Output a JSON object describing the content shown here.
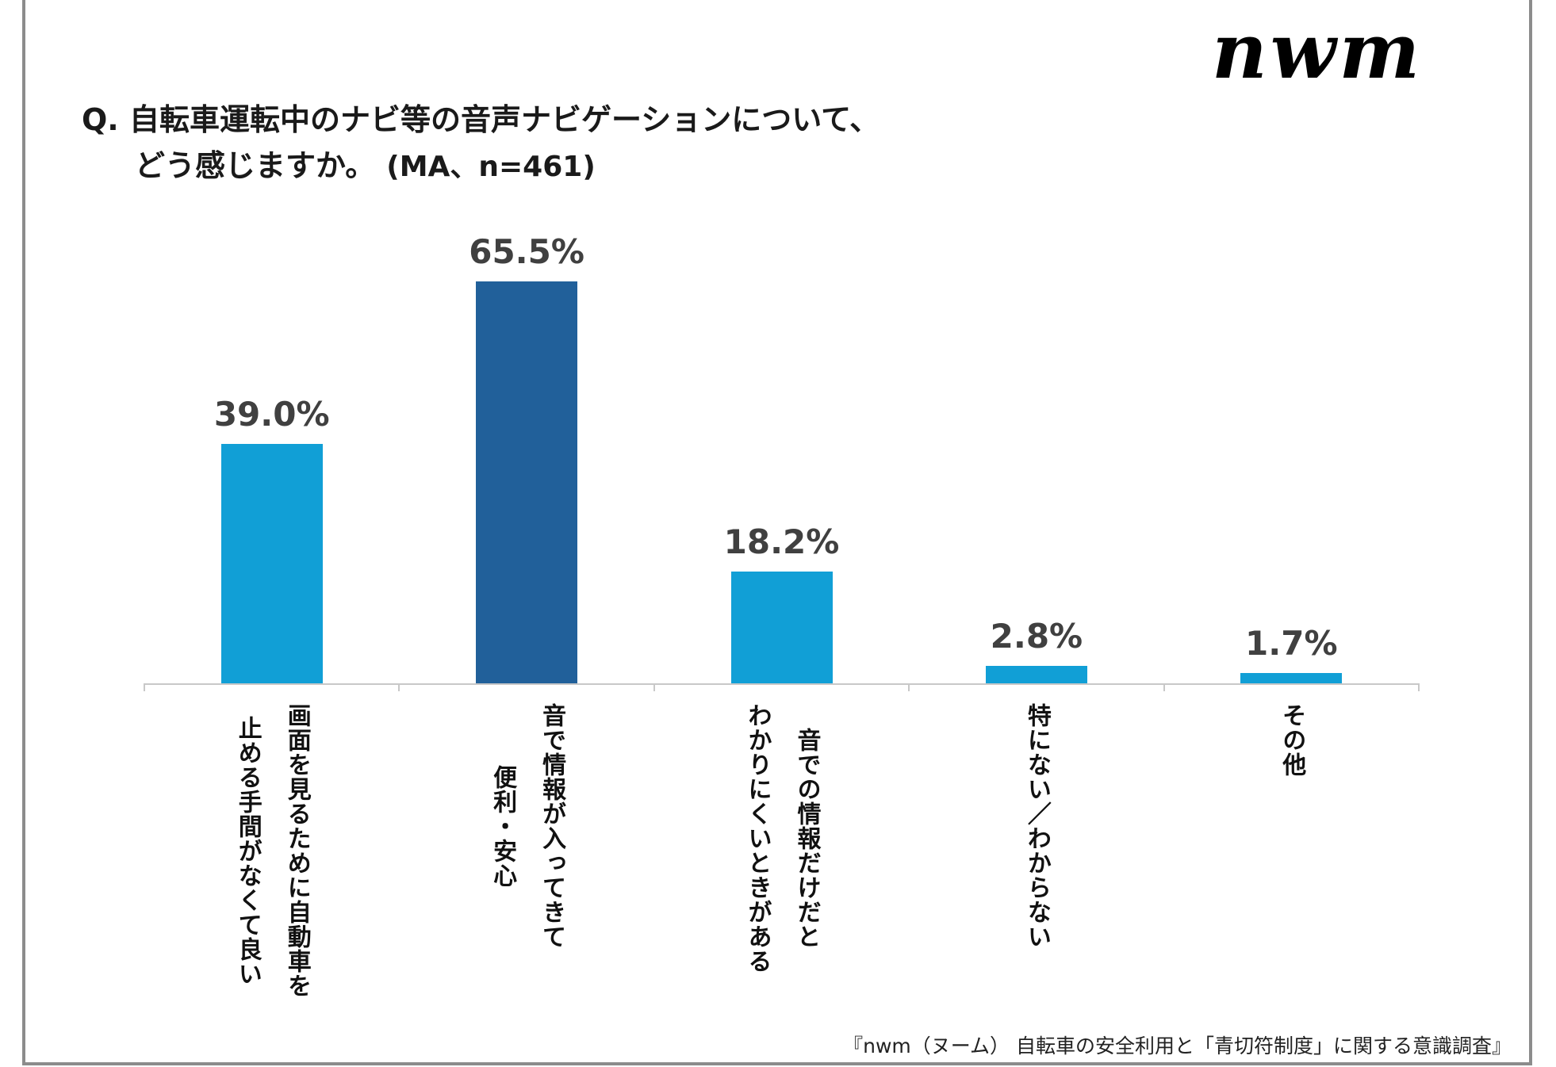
{
  "logo": "nwm",
  "title": {
    "line1": "Q. 自転車運転中のナビ等の音声ナビゲーションについて、",
    "line2": "どう感じますか。",
    "sub": "(MA、n=461)"
  },
  "source": "『nwm（ヌーム） 自転車の安全利用と「青切符制度」に関する意識調査』",
  "chart_data": {
    "type": "bar",
    "title": "Q. 自転車運転中のナビ等の音声ナビゲーションについて、どう感じますか。 (MA、n=461)",
    "categories": [
      [
        "画面を見るために自動車を",
        "止める手間がなくて良い"
      ],
      [
        "音で情報が入ってきて",
        "便利・安心"
      ],
      [
        "音での情報だけだと",
        "わかりにくいときがある"
      ],
      [
        "特にない／わからない"
      ],
      [
        "その他"
      ]
    ],
    "values": [
      39.0,
      65.5,
      18.2,
      2.8,
      1.7
    ],
    "value_labels": [
      "39.0%",
      "65.5%",
      "18.2%",
      "2.8%",
      "1.7%"
    ],
    "unit": "%",
    "ylim": [
      0,
      70
    ],
    "grid": false,
    "colors": [
      "#119fd6",
      "#21609a",
      "#119fd6",
      "#119fd6",
      "#119fd6"
    ]
  }
}
